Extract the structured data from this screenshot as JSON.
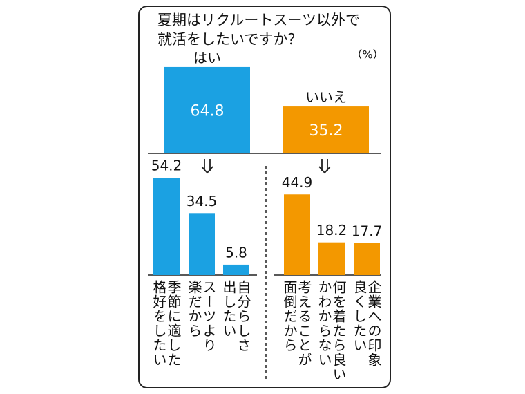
{
  "chart_data": [
    {
      "type": "bar",
      "title": [
        "夏期はリクルートスーツ以外で",
        "就活をしたいですか？"
      ],
      "unit_label": "（%）",
      "categories": [
        "はい",
        "いいえ"
      ],
      "values": [
        64.8,
        35.2
      ],
      "colors": [
        "#1ba1e2",
        "#f39800"
      ]
    },
    {
      "type": "bar",
      "categories": [
        [
          "季節に適した",
          "格好をしたい"
        ],
        [
          "スーツより",
          "楽だから"
        ],
        [
          "自分らしさ",
          "出したい"
        ]
      ],
      "values": [
        54.2,
        34.5,
        5.8
      ],
      "color": "#1ba1e2"
    },
    {
      "type": "bar",
      "categories": [
        [
          "考えることが",
          "面倒だから"
        ],
        [
          "何を着たら良い",
          "かわからない"
        ],
        [
          "企業への印象",
          "良くしたい"
        ]
      ],
      "values": [
        44.9,
        18.2,
        17.7
      ],
      "color": "#f39800"
    }
  ]
}
